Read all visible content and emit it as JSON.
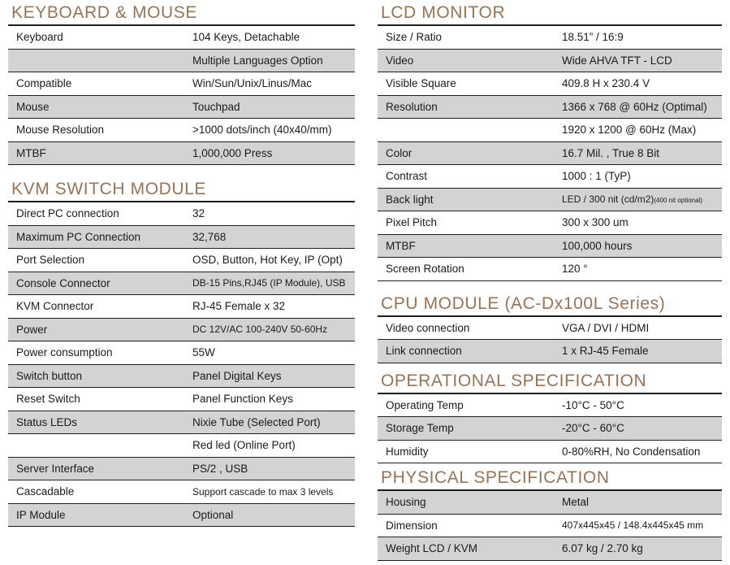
{
  "colors": {
    "heading": "#9a7254",
    "rule": "#1f1f1f",
    "text": "#1b1b1b",
    "shaded_row_bg": "#d3d3d3"
  },
  "sections": {
    "left": [
      {
        "title": "KEYBOARD & MOUSE",
        "rows": [
          {
            "label": "Keyboard",
            "value": "104 Keys, Detachable",
            "shaded": false
          },
          {
            "label": "",
            "value": "Multiple Languages Option",
            "shaded": true
          },
          {
            "label": "Compatible",
            "value": "Win/Sun/Unix/Linus/Mac",
            "shaded": false
          },
          {
            "label": "Mouse",
            "value": "Touchpad",
            "shaded": true
          },
          {
            "label": "Mouse Resolution",
            "value": ">1000 dots/inch (40x40/mm)",
            "shaded": false
          },
          {
            "label": "MTBF",
            "value": "1,000,000 Press",
            "shaded": true
          }
        ]
      },
      {
        "title": "KVM SWITCH MODULE",
        "rows": [
          {
            "label": "Direct PC connection",
            "value": "32",
            "shaded": false
          },
          {
            "label": "Maximum PC Connection",
            "value": "32,768",
            "shaded": true
          },
          {
            "label": "Port Selection",
            "value": "OSD, Button, Hot Key, IP (Opt)",
            "shaded": false
          },
          {
            "label": "Console Connector",
            "value": "DB-15 Pins,RJ45 (IP Module), USB",
            "shaded": true,
            "small": true
          },
          {
            "label": "KVM Connector",
            "value": "RJ-45 Female x 32",
            "shaded": false
          },
          {
            "label": "Power",
            "value": "DC 12V/AC 100-240V 50-60Hz",
            "shaded": true,
            "small": true
          },
          {
            "label": "Power consumption",
            "value": "55W",
            "shaded": false
          },
          {
            "label": "Switch button",
            "value": "Panel Digital Keys",
            "shaded": true
          },
          {
            "label": "Reset Switch",
            "value": "Panel Function Keys",
            "shaded": false
          },
          {
            "label": "Status LEDs",
            "value": "Nixie Tube (Selected Port)",
            "shaded": true
          },
          {
            "label": "",
            "value": "Red led (Online Port)",
            "shaded": false
          },
          {
            "label": "Server Interface",
            "value": "PS/2 , USB",
            "shaded": true
          },
          {
            "label": "Cascadable",
            "value": "Support cascade to max 3 levels",
            "shaded": false,
            "small": true
          },
          {
            "label": "IP Module",
            "value": "Optional",
            "shaded": true
          }
        ]
      }
    ],
    "right": [
      {
        "title": "LCD MONITOR",
        "rows": [
          {
            "label": "Size / Ratio",
            "value": "18.51” / 16:9",
            "shaded": false
          },
          {
            "label": "Video",
            "value": "Wide AHVA TFT - LCD",
            "shaded": true
          },
          {
            "label": "Visible Square",
            "value": "409.8 H x 230.4 V",
            "shaded": false
          },
          {
            "label": "Resolution",
            "value": "1366 x 768 @ 60Hz (Optimal)",
            "shaded": true
          },
          {
            "label": "",
            "value": "1920 x 1200 @ 60Hz (Max)",
            "shaded": false
          },
          {
            "label": "Color",
            "value": "16.7 Mil. , True 8 Bit",
            "shaded": true
          },
          {
            "label": "Contrast",
            "value": "1000 : 1 (TyP)",
            "shaded": false
          },
          {
            "label": "Back light",
            "value": "LED / 300 nit (cd/m2)",
            "value_suffix": "(400 nit optional)",
            "shaded": true,
            "small": true
          },
          {
            "label": "Pixel Pitch",
            "value": "300 x 300 um",
            "shaded": false
          },
          {
            "label": "MTBF",
            "value": "100,000 hours",
            "shaded": true
          },
          {
            "label": "Screen Rotation",
            "value": "120 °",
            "shaded": false
          }
        ]
      },
      {
        "title": "CPU MODULE (AC-Dx100L Series)",
        "rows": [
          {
            "label": "Video connection",
            "value": "VGA / DVI / HDMI",
            "shaded": false
          },
          {
            "label": "Link connection",
            "value": "1 x RJ-45 Female",
            "shaded": true
          }
        ]
      },
      {
        "title": "OPERATIONAL SPECIFICATION",
        "rows": [
          {
            "label": "Operating Temp",
            "value": "-10°C - 50°C",
            "shaded": false
          },
          {
            "label": "Storage Temp",
            "value": "-20°C - 60°C",
            "shaded": true
          },
          {
            "label": "Humidity",
            "value": "0-80%RH, No Condensation",
            "shaded": false
          }
        ]
      },
      {
        "title": "PHYSICAL SPECIFICATION",
        "rows": [
          {
            "label": "Housing",
            "value": "Metal",
            "shaded": true
          },
          {
            "label": "Dimension",
            "value": "407x445x45 / 148.4x445x45 mm",
            "shaded": false,
            "small": true
          },
          {
            "label": "Weight LCD / KVM",
            "value": "6.07 kg / 2.70 kg",
            "shaded": true
          }
        ]
      }
    ]
  }
}
